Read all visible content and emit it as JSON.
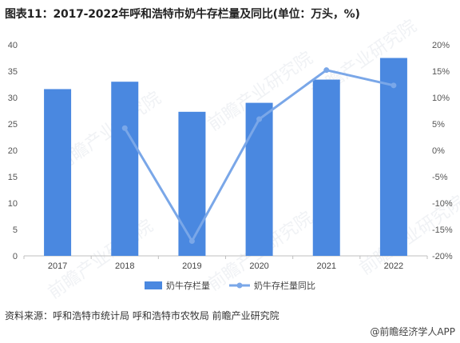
{
  "title": "图表11：2017-2022年呼和浩特市奶牛存栏量及同比(单位：万头，%)",
  "source": "资料来源：呼和浩特市统计局 呼和浩特市农牧局 前瞻产业研究院",
  "brand": "@前瞻经济学人APP",
  "watermark": "前瞻产业研究院",
  "colors": {
    "bar": "#4a88e0",
    "line": "#7aa7e8"
  },
  "chart_data": {
    "type": "bar",
    "categories": [
      "2017",
      "2018",
      "2019",
      "2020",
      "2021",
      "2022"
    ],
    "series": [
      {
        "name": "奶牛存栏量",
        "type": "bar",
        "axis": "left",
        "values": [
          31.6,
          33.0,
          27.3,
          29.0,
          33.4,
          37.5
        ]
      },
      {
        "name": "奶牛存栏量同比",
        "type": "line",
        "axis": "right",
        "values": [
          null,
          4.2,
          -17.2,
          5.9,
          15.2,
          12.3
        ]
      }
    ],
    "ylim_left": [
      0,
      40
    ],
    "yticks_left": [
      "0",
      "5",
      "10",
      "15",
      "20",
      "25",
      "30",
      "35",
      "40"
    ],
    "ylim_right": [
      -20,
      20
    ],
    "yticks_right": [
      "-20%",
      "-15%",
      "-10%",
      "-5%",
      "0%",
      "5%",
      "10%",
      "15%",
      "20%"
    ],
    "legend_position": "bottom",
    "grid": false
  }
}
